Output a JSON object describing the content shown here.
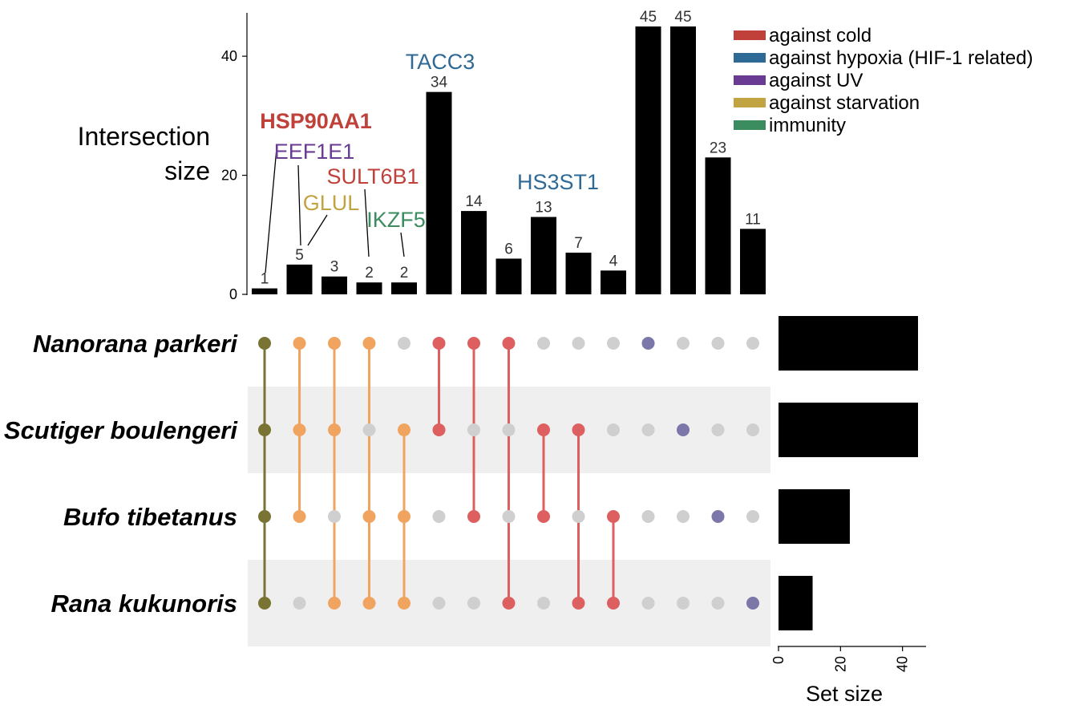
{
  "chart_data": {
    "type": "upset",
    "ylabel_lines": [
      "Intersection",
      "size"
    ],
    "y_ticks": [
      0,
      20,
      40
    ],
    "ylim": [
      0,
      47
    ],
    "sets": [
      "Nanorana parkeri",
      "Scutiger boulengeri",
      "Bufo tibetanus",
      "Rana kukunoris"
    ],
    "set_sizes": [
      45,
      45,
      23,
      11
    ],
    "set_size_label": "Set size",
    "set_size_ticks": [
      0,
      20,
      40
    ],
    "set_size_lim": [
      0,
      47
    ],
    "bars": [
      {
        "value": 1,
        "label": "1",
        "members": [
          true,
          true,
          true,
          true
        ],
        "color": "#7a7434"
      },
      {
        "value": 5,
        "label": "5",
        "members": [
          true,
          true,
          true,
          false
        ],
        "color": "#f0a45f"
      },
      {
        "value": 3,
        "label": "3",
        "members": [
          true,
          true,
          false,
          true
        ],
        "color": "#f0a45f"
      },
      {
        "value": 2,
        "label": "2",
        "members": [
          true,
          false,
          true,
          true
        ],
        "color": "#f0a45f"
      },
      {
        "value": 2,
        "label": "2",
        "members": [
          false,
          true,
          true,
          true
        ],
        "color": "#f0a45f"
      },
      {
        "value": 34,
        "label": "34",
        "members": [
          true,
          true,
          false,
          false
        ],
        "color": "#dd5f5f"
      },
      {
        "value": 14,
        "label": "14",
        "members": [
          true,
          false,
          true,
          false
        ],
        "color": "#dd5f5f"
      },
      {
        "value": 6,
        "label": "6",
        "members": [
          true,
          false,
          false,
          true
        ],
        "color": "#dd5f5f"
      },
      {
        "value": 13,
        "label": "13",
        "members": [
          false,
          true,
          true,
          false
        ],
        "color": "#dd5f5f"
      },
      {
        "value": 7,
        "label": "7",
        "members": [
          false,
          true,
          false,
          true
        ],
        "color": "#dd5f5f"
      },
      {
        "value": 4,
        "label": "4",
        "members": [
          false,
          false,
          true,
          true
        ],
        "color": "#dd5f5f"
      },
      {
        "value": 45,
        "label": "45",
        "members": [
          true,
          false,
          false,
          false
        ],
        "color": "#7b77a8"
      },
      {
        "value": 45,
        "label": "45",
        "members": [
          false,
          true,
          false,
          false
        ],
        "color": "#7b77a8"
      },
      {
        "value": 23,
        "label": "23",
        "members": [
          false,
          false,
          true,
          false
        ],
        "color": "#7b77a8"
      },
      {
        "value": 11,
        "label": "11",
        "members": [
          false,
          false,
          false,
          true
        ],
        "color": "#7b77a8"
      }
    ],
    "gene_annotations": [
      {
        "gene": "HSP90AA1",
        "bar_index": 0,
        "category": "against cold",
        "bold": true
      },
      {
        "gene": "EEF1E1",
        "bar_index": 1,
        "category": "against UV",
        "bold": false
      },
      {
        "gene": "GLUL",
        "bar_index": 1,
        "category": "against starvation",
        "bold": false
      },
      {
        "gene": "SULT6B1",
        "bar_index": 3,
        "category": "against cold",
        "bold": false
      },
      {
        "gene": "IKZF5",
        "bar_index": 4,
        "category": "immunity",
        "bold": false
      },
      {
        "gene": "TACC3",
        "bar_index": 5,
        "category": "against hypoxia (HIF-1 related)",
        "bold": false
      },
      {
        "gene": "HS3ST1",
        "bar_index": 8,
        "category": "against hypoxia (HIF-1 related)",
        "bold": false
      }
    ],
    "legend": [
      {
        "label": "against cold",
        "color": "#c0403a"
      },
      {
        "label": "against hypoxia (HIF-1 related)",
        "color": "#2f6a96"
      },
      {
        "label": "against UV",
        "color": "#6a3b93"
      },
      {
        "label": "against starvation",
        "color": "#c2a341"
      },
      {
        "label": "immunity",
        "color": "#3b8c5e"
      }
    ],
    "inactive_dot_color": "#cfcfcf",
    "row_shade_color": "#efefef",
    "legend_placement": "top-right"
  }
}
